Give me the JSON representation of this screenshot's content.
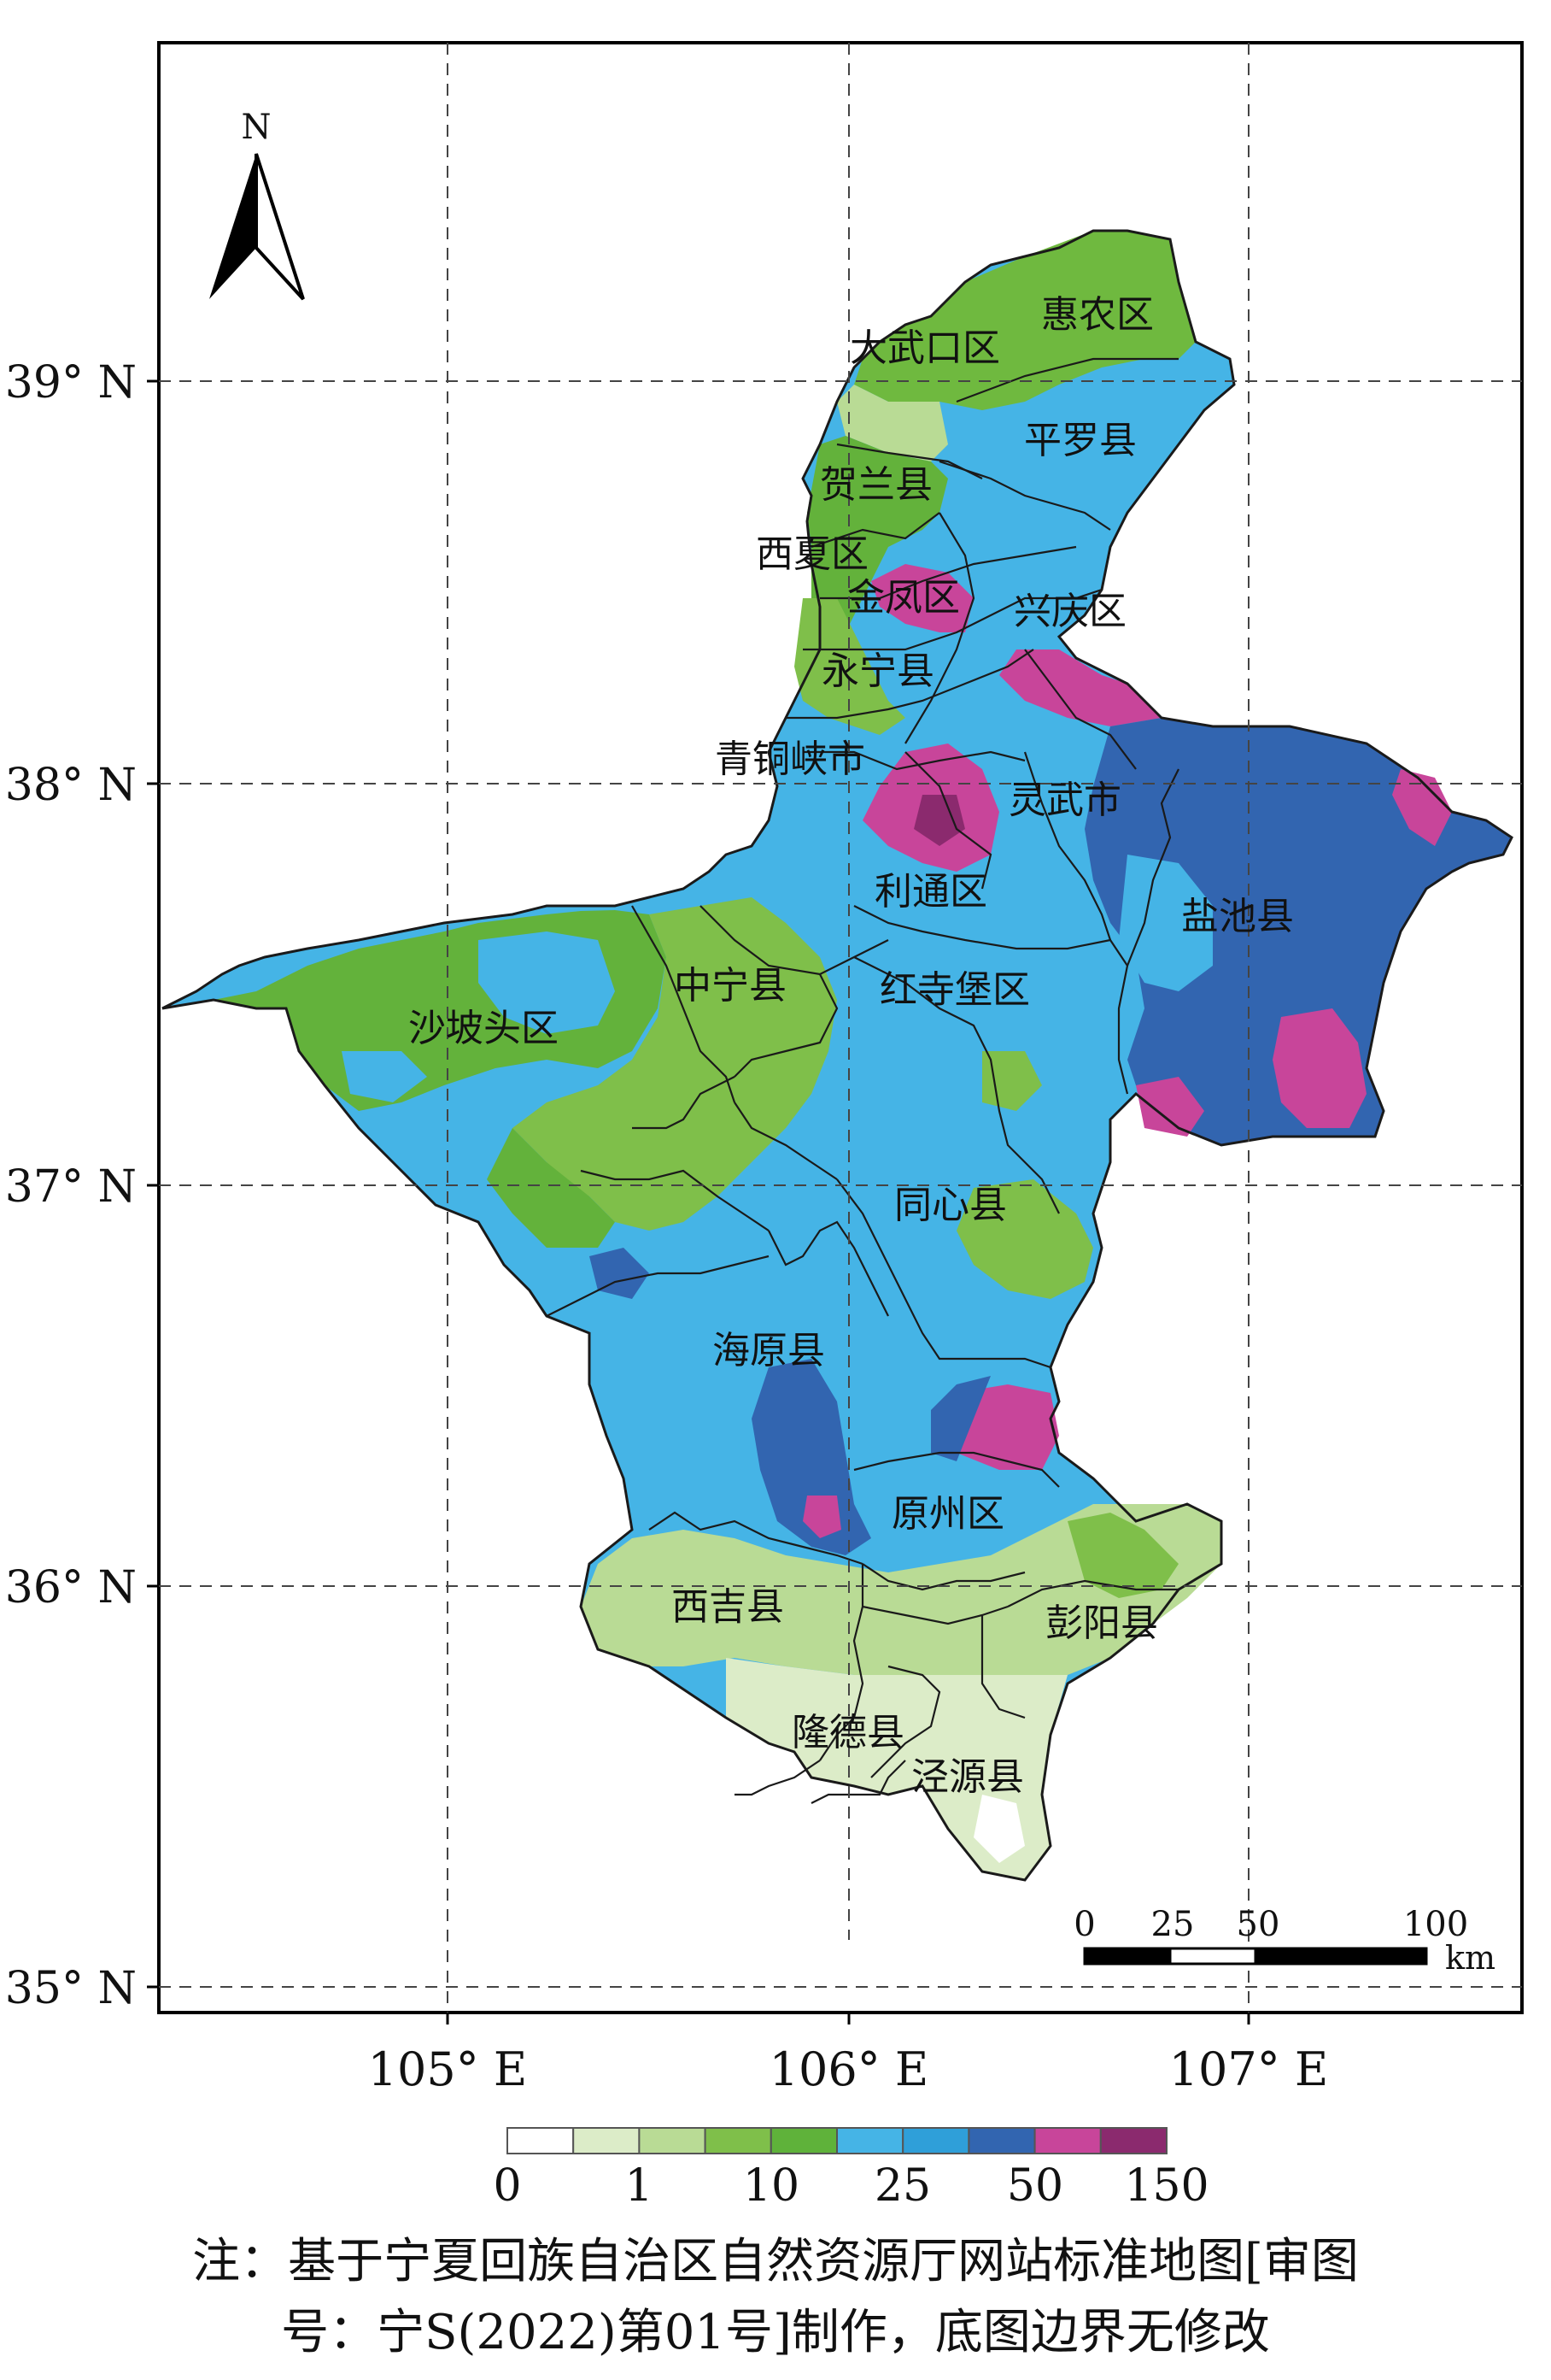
{
  "north_arrow": {
    "label": "N"
  },
  "axes": {
    "lat_labels": [
      "39° N",
      "38° N",
      "37° N",
      "36° N",
      "35° N"
    ],
    "lon_labels": [
      "105° E",
      "106° E",
      "107° E"
    ]
  },
  "regions": [
    {
      "name": "惠农区",
      "color": "#6fb93f"
    },
    {
      "name": "大武口区",
      "color": "#6fb93f"
    },
    {
      "name": "平罗县",
      "color": "#45b4e6"
    },
    {
      "name": "贺兰县",
      "color": "#63b23b"
    },
    {
      "name": "西夏区",
      "color": "#6fb93f"
    },
    {
      "name": "金凤区",
      "color": "#c8459a"
    },
    {
      "name": "兴庆区",
      "color": "#45b4e6"
    },
    {
      "name": "永宁县",
      "color": "#45b4e6"
    },
    {
      "name": "青铜峡市",
      "color": "#45b4e6"
    },
    {
      "name": "灵武市",
      "color": "#3265b0"
    },
    {
      "name": "利通区",
      "color": "#45b4e6"
    },
    {
      "name": "盐池县",
      "color": "#3265b0"
    },
    {
      "name": "中宁县",
      "color": "#63b23b"
    },
    {
      "name": "红寺堡区",
      "color": "#45b4e6"
    },
    {
      "name": "沙坡头区",
      "color": "#63b23b"
    },
    {
      "name": "同心县",
      "color": "#45b4e6"
    },
    {
      "name": "海原县",
      "color": "#45b4e6"
    },
    {
      "name": "原州区",
      "color": "#45b4e6"
    },
    {
      "name": "西吉县",
      "color": "#b9db95"
    },
    {
      "name": "彭阳县",
      "color": "#b9db95"
    },
    {
      "name": "隆德县",
      "color": "#dcecc8"
    },
    {
      "name": "泾源县",
      "color": "#dcecc8"
    }
  ],
  "scale_bar": {
    "labels": [
      "0",
      "25",
      "50",
      "100"
    ],
    "unit": "km"
  },
  "legend": {
    "colors": [
      "#ffffff",
      "#dcecc8",
      "#b9db95",
      "#7fbf4a",
      "#5fb23a",
      "#45b4e6",
      "#2f9fd9",
      "#3265b0",
      "#c8459a",
      "#8b2a6e"
    ],
    "labels": [
      "0",
      "1",
      "10",
      "25",
      "50",
      "150"
    ]
  },
  "note": {
    "line1": "注：基于宁夏回族自治区自然资源厅网站标准地图[审图",
    "line2": "号：宁S(2022)第01号]制作，底图边界无修改"
  }
}
